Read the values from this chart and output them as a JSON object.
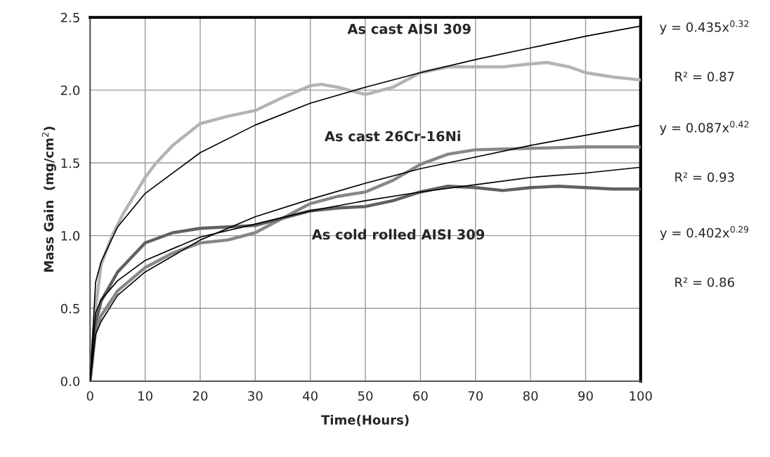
{
  "chart_data": {
    "type": "line",
    "xlabel": "Time(Hours)",
    "ylabel": "Mass Gain  (mg/cm$^{2}$)",
    "xlim": [
      0,
      100
    ],
    "xticks": [
      0,
      10,
      20,
      30,
      40,
      50,
      60,
      70,
      80,
      90,
      100
    ],
    "ylim": [
      0,
      2.5
    ],
    "yticks": [
      {
        "value": 0,
        "label": "0.0"
      },
      {
        "value": 0.5,
        "label": "0.5"
      },
      {
        "value": 1,
        "label": "1.0"
      },
      {
        "value": 1.5,
        "label": "1.5"
      },
      {
        "value": 2,
        "label": "2.0"
      },
      {
        "value": 2.5,
        "label": "2.5"
      }
    ],
    "grid": true,
    "marker": "none",
    "line_style": "solid",
    "series": [
      {
        "color": "#b3b3b3",
        "x": [
          0,
          1,
          2,
          4,
          6,
          10,
          12,
          15,
          20,
          25,
          30,
          35,
          40,
          42,
          45,
          50,
          55,
          60,
          65,
          70,
          75,
          80,
          83,
          87,
          90,
          95,
          100
        ],
        "values": [
          0,
          0.5,
          0.8,
          1.0,
          1.15,
          1.4,
          1.5,
          1.62,
          1.77,
          1.82,
          1.86,
          1.95,
          2.03,
          2.04,
          2.02,
          1.97,
          2.02,
          2.12,
          2.16,
          2.16,
          2.16,
          2.18,
          2.19,
          2.16,
          2.12,
          2.09,
          2.07
        ]
      },
      {
        "color": "#878787",
        "x": [
          0,
          1,
          2,
          5,
          10,
          15,
          20,
          25,
          30,
          35,
          40,
          45,
          50,
          55,
          60,
          65,
          70,
          80,
          90,
          100
        ],
        "values": [
          0,
          0.35,
          0.45,
          0.62,
          0.78,
          0.88,
          0.95,
          0.97,
          1.02,
          1.12,
          1.22,
          1.27,
          1.3,
          1.38,
          1.49,
          1.56,
          1.59,
          1.6,
          1.61,
          1.61
        ]
      },
      {
        "color": "#606060",
        "x": [
          0,
          1,
          2,
          5,
          10,
          15,
          20,
          30,
          40,
          45,
          50,
          55,
          60,
          65,
          70,
          75,
          80,
          85,
          90,
          95,
          100
        ],
        "values": [
          0,
          0.4,
          0.55,
          0.75,
          0.95,
          1.02,
          1.05,
          1.07,
          1.17,
          1.19,
          1.2,
          1.24,
          1.3,
          1.34,
          1.33,
          1.31,
          1.33,
          1.34,
          1.33,
          1.32,
          1.32
        ]
      },
      {
        "color": "#000000",
        "x": [
          0,
          1,
          2,
          5,
          10,
          20,
          30,
          40,
          50,
          60,
          70,
          80,
          90,
          100
        ],
        "values": [
          0,
          0.68,
          0.82,
          1.06,
          1.29,
          1.57,
          1.76,
          1.91,
          2.02,
          2.12,
          2.21,
          2.29,
          2.37,
          2.44
        ]
      },
      {
        "color": "#000000",
        "x": [
          0,
          1,
          2,
          5,
          10,
          20,
          30,
          40,
          50,
          60,
          70,
          80,
          90,
          100
        ],
        "values": [
          0,
          0.32,
          0.41,
          0.59,
          0.75,
          0.97,
          1.13,
          1.25,
          1.36,
          1.46,
          1.54,
          1.62,
          1.69,
          1.76
        ]
      },
      {
        "color": "#000000",
        "x": [
          0,
          1,
          2,
          5,
          10,
          20,
          30,
          40,
          50,
          60,
          70,
          80,
          90,
          100
        ],
        "values": [
          0,
          0.47,
          0.56,
          0.69,
          0.83,
          0.99,
          1.08,
          1.17,
          1.24,
          1.3,
          1.35,
          1.4,
          1.43,
          1.47
        ]
      }
    ],
    "annotations": [
      "As cast AISI 309",
      "As cast 26Cr-16Ni",
      "As cold rolled AISI 309",
      "y = 0.435x$^{0.32}$",
      "R² = 0.87",
      "y = 0.087x$^{0.42}$",
      "R² = 0.93",
      "y = 0.402x$^{0.29}$",
      "R² = 0.86"
    ]
  }
}
